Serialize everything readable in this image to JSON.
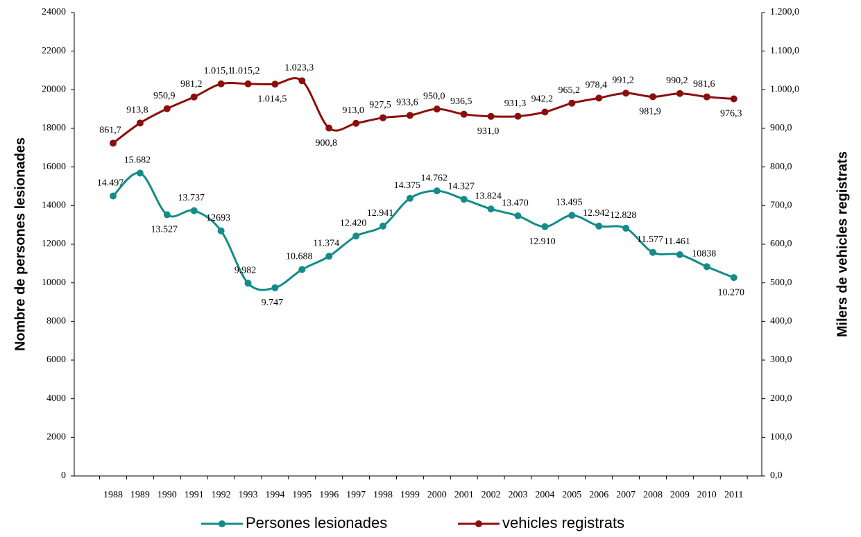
{
  "chart_data": {
    "type": "line",
    "y_label": "Nombre de persones lesionades",
    "y2_label": "Milers de vehicles registrats",
    "categories": [
      "1988",
      "1989",
      "1990",
      "1991",
      "1992",
      "1993",
      "1994",
      "1995",
      "1996",
      "1997",
      "1998",
      "1999",
      "2000",
      "2001",
      "2002",
      "2003",
      "2004",
      "2005",
      "2006",
      "2007",
      "2008",
      "2009",
      "2010",
      "2011"
    ],
    "series": [
      {
        "name": "Persones lesionades",
        "color": "#138c8a",
        "values": [
          14497,
          15682,
          13527,
          13737,
          12693,
          9982,
          9747,
          10688,
          11374,
          12420,
          12941,
          14375,
          14762,
          14327,
          13824,
          13470,
          12910,
          13495,
          12942,
          12828,
          11577,
          11461,
          10838,
          10270
        ],
        "value_labels": [
          "14.497",
          "15.682",
          "13.527",
          "13.737",
          "12693",
          "9.982",
          "9.747",
          "10.688",
          "11.374",
          "12.420",
          "12.941",
          "14.375",
          "14.762",
          "14.327",
          "13.824",
          "13.470",
          "12.910",
          "13.495",
          "12.942",
          "12.828",
          "11.577",
          "11.461",
          "10838",
          "10.270"
        ]
      },
      {
        "name": "vehicles registrats",
        "color": "#8b0e0e",
        "axis": "y2",
        "values": [
          861.7,
          913.8,
          950.9,
          981.2,
          1015.1,
          1015.2,
          1014.5,
          1023.3,
          900.8,
          913.0,
          927.5,
          933.6,
          950.0,
          936.5,
          931.0,
          931.3,
          942.2,
          965.2,
          978.4,
          991.2,
          981.9,
          990.2,
          981.6,
          976.3
        ],
        "value_labels": [
          "861,7",
          "913,8",
          "950,9",
          "981,2",
          "1.015,1",
          "1.015,2",
          "1.014,5",
          "1.023,3",
          "900,8",
          "913,0",
          "927,5",
          "933,6",
          "950,0",
          "936,5",
          "931,0",
          "931,3",
          "942,2",
          "965,2",
          "978,4",
          "991,2",
          "981,9",
          "990,2",
          "981,6",
          "976,3"
        ]
      }
    ],
    "ylim": [
      0,
      24000
    ],
    "yticks": [
      0,
      2000,
      4000,
      6000,
      8000,
      10000,
      12000,
      14000,
      16000,
      18000,
      20000,
      22000,
      24000
    ],
    "y2lim": [
      0,
      1200
    ],
    "y2ticks": [
      {
        "value": 0,
        "label": "0,0"
      },
      {
        "value": 100,
        "label": "100,0"
      },
      {
        "value": 200,
        "label": "200,0"
      },
      {
        "value": 300,
        "label": "300,0"
      },
      {
        "value": 400,
        "label": "400,0"
      },
      {
        "value": 500,
        "label": "500,0"
      },
      {
        "value": 600,
        "label": "600,0"
      },
      {
        "value": 700,
        "label": "700,0"
      },
      {
        "value": 800,
        "label": "800,0"
      },
      {
        "value": 900,
        "label": "900,0"
      },
      {
        "value": 1000,
        "label": "1.000,0"
      },
      {
        "value": 1100,
        "label": "1.100,0"
      },
      {
        "value": 1200,
        "label": "1.200,0"
      }
    ],
    "grid": false,
    "legend": "bottom"
  }
}
